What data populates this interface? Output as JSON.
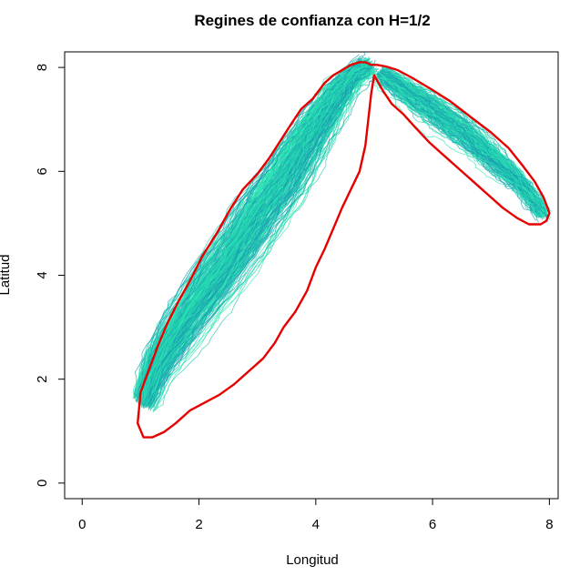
{
  "chart_data": {
    "type": "line",
    "title": "Regines de confianza con H=1/2",
    "xlabel": "Longitud",
    "ylabel": "Latitud",
    "xlim": [
      -0.3,
      8.15
    ],
    "ylim": [
      -0.3,
      8.3
    ],
    "xticks": [
      "0",
      "2",
      "4",
      "6",
      "8"
    ],
    "xtick_values": [
      0,
      2,
      4,
      6,
      8
    ],
    "yticks": [
      "0",
      "2",
      "4",
      "6",
      "8"
    ],
    "ytick_values": [
      0,
      2,
      4,
      6,
      8
    ],
    "grid": false,
    "colors": {
      "paths_light": "#2ee8b4",
      "paths_dark": "#1a9fb0",
      "paths_mid": "#22c8b0",
      "region_boundary": "#e60000"
    },
    "series": [
      {
        "name": "",
        "kind": "simulated-paths-band-1",
        "x": [
          1.05,
          1.3,
          1.7,
          2.2,
          2.7,
          3.1,
          3.5,
          3.8,
          4.1,
          4.4,
          4.65,
          4.9
        ],
        "y": [
          1.55,
          2.3,
          3.0,
          3.8,
          4.6,
          5.3,
          5.9,
          6.5,
          7.0,
          7.5,
          7.85,
          8.05
        ]
      },
      {
        "name": "",
        "kind": "simulated-paths-band-2",
        "x": [
          5.1,
          5.5,
          6.0,
          6.5,
          7.0,
          7.5,
          7.9
        ],
        "y": [
          7.9,
          7.6,
          7.2,
          6.8,
          6.3,
          5.8,
          5.2
        ]
      },
      {
        "name": "",
        "kind": "confidence-region-boundary",
        "x": [
          0.95,
          1.0,
          1.15,
          1.3,
          1.45,
          1.65,
          1.85,
          2.05,
          2.3,
          2.55,
          2.75,
          3.0,
          3.2,
          3.4,
          3.6,
          3.75,
          3.95,
          4.15,
          4.3,
          4.45,
          4.6,
          4.75,
          4.85,
          4.95,
          5.05,
          5.2,
          5.4,
          5.65,
          5.95,
          6.3,
          6.65,
          7.0,
          7.3,
          7.55,
          7.75,
          7.9,
          8.0,
          7.95,
          7.85,
          7.65,
          7.45,
          7.2,
          6.95,
          6.7,
          6.45,
          6.2,
          5.95,
          5.7,
          5.5,
          5.3,
          5.15,
          5.05,
          5.0,
          4.95,
          4.9,
          4.85,
          4.75,
          4.6,
          4.45,
          4.3,
          4.15,
          4.0,
          3.85,
          3.65,
          3.45,
          3.3,
          3.1,
          2.85,
          2.6,
          2.35,
          2.1,
          1.85,
          1.6,
          1.4,
          1.2,
          1.05,
          0.95
        ],
        "y": [
          1.15,
          1.75,
          2.2,
          2.65,
          3.05,
          3.5,
          3.9,
          4.35,
          4.8,
          5.3,
          5.65,
          5.95,
          6.25,
          6.6,
          6.95,
          7.2,
          7.4,
          7.7,
          7.85,
          7.95,
          8.05,
          8.1,
          8.1,
          8.05,
          8.05,
          8.02,
          7.95,
          7.8,
          7.6,
          7.35,
          7.05,
          6.75,
          6.45,
          6.1,
          5.8,
          5.5,
          5.2,
          5.05,
          4.98,
          4.98,
          5.1,
          5.3,
          5.55,
          5.8,
          6.05,
          6.3,
          6.55,
          6.85,
          7.1,
          7.3,
          7.55,
          7.75,
          7.85,
          7.5,
          7.0,
          6.5,
          6.0,
          5.65,
          5.3,
          4.9,
          4.5,
          4.15,
          3.7,
          3.3,
          3.0,
          2.7,
          2.4,
          2.15,
          1.9,
          1.7,
          1.55,
          1.4,
          1.15,
          0.98,
          0.88,
          0.88,
          1.15
        ]
      }
    ]
  }
}
